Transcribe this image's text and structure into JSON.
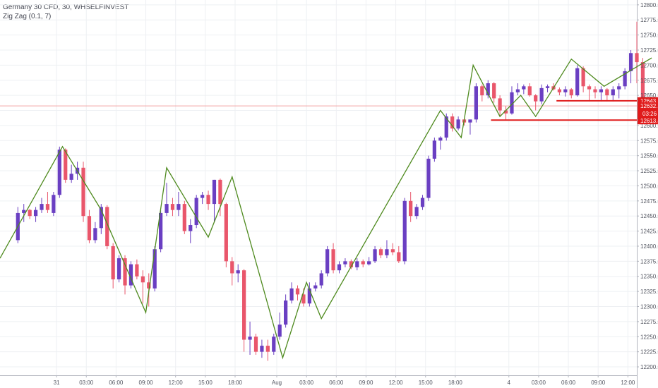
{
  "legend": {
    "symbol_line": "Germany 30 CFD, 30, WHSELFINVEST",
    "indicator_line": "Zig Zag (0.1, 7)"
  },
  "colors": {
    "up_candle": "#6a3fc2",
    "down_candle": "#e9566b",
    "zigzag": "#4e8a1e",
    "level_line": "#e01b1b",
    "price_line": "#f2a3a3",
    "grid": "#eef0f3",
    "axis_text": "#50535e"
  },
  "chart_data": {
    "type": "candlestick",
    "interval": "30",
    "y_axis": {
      "position": "right",
      "range": [
        12186,
        12808
      ],
      "ticks": [
        12200,
        12225,
        12250,
        12275,
        12300,
        12325,
        12350,
        12375,
        12400,
        12425,
        12450,
        12475,
        12500,
        12525,
        12550,
        12575,
        12600,
        12625,
        12650,
        12675,
        12700,
        12725,
        12750,
        12775,
        12800
      ],
      "tick_labels": [
        "12200.0",
        "12225.0",
        "12250.0",
        "12275.0",
        "12300.0",
        "12325.0",
        "12350.0",
        "12375.0",
        "12400.0",
        "12425.0",
        "12450.0",
        "12475.0",
        "12500.0",
        "12525.0",
        "12550.0",
        "12575.0",
        "12600.0",
        "12625.0",
        "12650.0",
        "12675.0",
        "12700.0",
        "12725.0",
        "12750.0",
        "12775.0",
        "12800.0"
      ]
    },
    "x_axis": {
      "range": [
        -3,
        104
      ],
      "ticks": [
        {
          "label": "31",
          "index": 6.5
        },
        {
          "label": "03:00",
          "index": 11.5
        },
        {
          "label": "06:00",
          "index": 16.5
        },
        {
          "label": "09:00",
          "index": 21.5
        },
        {
          "label": "12:00",
          "index": 26.5
        },
        {
          "label": "15:00",
          "index": 31.5
        },
        {
          "label": "18:00",
          "index": 36.5
        },
        {
          "label": "Aug",
          "index": 43.5
        },
        {
          "label": "03:00",
          "index": 48.5
        },
        {
          "label": "06:00",
          "index": 53.5
        },
        {
          "label": "09:00",
          "index": 58.5
        },
        {
          "label": "12:00",
          "index": 63.5
        },
        {
          "label": "15:00",
          "index": 68.5
        },
        {
          "label": "18:00",
          "index": 73.5
        },
        {
          "label": "4",
          "index": 82.5
        },
        {
          "label": "03:00",
          "index": 87.5
        },
        {
          "label": "06:00",
          "index": 92.5
        },
        {
          "label": "09:00",
          "index": 97.5
        },
        {
          "label": "12:00",
          "index": 102.5
        }
      ]
    },
    "grid": true,
    "candles": [
      [
        12410,
        12465,
        12405,
        12455
      ],
      [
        12455,
        12470,
        12440,
        12460
      ],
      [
        12460,
        12462,
        12445,
        12450
      ],
      [
        12450,
        12465,
        12440,
        12460
      ],
      [
        12460,
        12480,
        12455,
        12470
      ],
      [
        12470,
        12490,
        12455,
        12460
      ],
      [
        12455,
        12490,
        12450,
        12485
      ],
      [
        12485,
        12565,
        12480,
        12560
      ],
      [
        12560,
        12562,
        12505,
        12510
      ],
      [
        12510,
        12535,
        12505,
        12520
      ],
      [
        12520,
        12540,
        12510,
        12530
      ],
      [
        12530,
        12540,
        12440,
        12450
      ],
      [
        12450,
        12460,
        12405,
        12410
      ],
      [
        12410,
        12440,
        12405,
        12430
      ],
      [
        12430,
        12470,
        12420,
        12465
      ],
      [
        12465,
        12468,
        12395,
        12400
      ],
      [
        12400,
        12405,
        12330,
        12345
      ],
      [
        12345,
        12385,
        12340,
        12380
      ],
      [
        12380,
        12385,
        12320,
        12335
      ],
      [
        12335,
        12375,
        12330,
        12370
      ],
      [
        12370,
        12378,
        12345,
        12350
      ],
      [
        12350,
        12360,
        12305,
        12340
      ],
      [
        12340,
        12355,
        12300,
        12330
      ],
      [
        12330,
        12400,
        12325,
        12395
      ],
      [
        12395,
        12460,
        12390,
        12455
      ],
      [
        12455,
        12505,
        12450,
        12470
      ],
      [
        12470,
        12480,
        12450,
        12460
      ],
      [
        12460,
        12490,
        12450,
        12470
      ],
      [
        12470,
        12475,
        12420,
        12425
      ],
      [
        12425,
        12445,
        12405,
        12435
      ],
      [
        12435,
        12485,
        12430,
        12480
      ],
      [
        12480,
        12490,
        12470,
        12485
      ],
      [
        12485,
        12492,
        12460,
        12470
      ],
      [
        12470,
        12510,
        12440,
        12510
      ],
      [
        12510,
        12512,
        12450,
        12470
      ],
      [
        12470,
        12472,
        12365,
        12375
      ],
      [
        12375,
        12382,
        12335,
        12355
      ],
      [
        12355,
        12370,
        12340,
        12360
      ],
      [
        12360,
        12362,
        12225,
        12245
      ],
      [
        12245,
        12275,
        12220,
        12250
      ],
      [
        12250,
        12255,
        12220,
        12225
      ],
      [
        12225,
        12245,
        12215,
        12235
      ],
      [
        12235,
        12245,
        12210,
        12225
      ],
      [
        12225,
        12255,
        12220,
        12250
      ],
      [
        12250,
        12290,
        12245,
        12270
      ],
      [
        12270,
        12320,
        12265,
        12310
      ],
      [
        12310,
        12340,
        12305,
        12330
      ],
      [
        12330,
        12335,
        12310,
        12320
      ],
      [
        12320,
        12330,
        12300,
        12305
      ],
      [
        12305,
        12340,
        12300,
        12330
      ],
      [
        12330,
        12340,
        12325,
        12335
      ],
      [
        12335,
        12360,
        12330,
        12355
      ],
      [
        12355,
        12400,
        12350,
        12395
      ],
      [
        12395,
        12405,
        12355,
        12360
      ],
      [
        12360,
        12375,
        12355,
        12370
      ],
      [
        12370,
        12380,
        12365,
        12375
      ],
      [
        12375,
        12378,
        12362,
        12365
      ],
      [
        12365,
        12380,
        12360,
        12375
      ],
      [
        12375,
        12378,
        12365,
        12370
      ],
      [
        12370,
        12382,
        12368,
        12375
      ],
      [
        12375,
        12400,
        12372,
        12395
      ],
      [
        12395,
        12398,
        12380,
        12385
      ],
      [
        12385,
        12410,
        12380,
        12395
      ],
      [
        12395,
        12405,
        12385,
        12390
      ],
      [
        12390,
        12400,
        12372,
        12375
      ],
      [
        12375,
        12480,
        12370,
        12475
      ],
      [
        12475,
        12490,
        12440,
        12450
      ],
      [
        12450,
        12470,
        12445,
        12465
      ],
      [
        12465,
        12485,
        12460,
        12480
      ],
      [
        12480,
        12550,
        12475,
        12545
      ],
      [
        12545,
        12580,
        12540,
        12575
      ],
      [
        12575,
        12582,
        12560,
        12580
      ],
      [
        12580,
        12620,
        12575,
        12615
      ],
      [
        12615,
        12620,
        12590,
        12595
      ],
      [
        12595,
        12615,
        12592,
        12610
      ],
      [
        12610,
        12612,
        12600,
        12605
      ],
      [
        12605,
        12608,
        12585,
        12610
      ],
      [
        12610,
        12670,
        12605,
        12665
      ],
      [
        12665,
        12668,
        12640,
        12650
      ],
      [
        12650,
        12675,
        12645,
        12670
      ],
      [
        12670,
        12672,
        12638,
        12645
      ],
      [
        12645,
        12650,
        12615,
        12625
      ],
      [
        12625,
        12632,
        12610,
        12620
      ],
      [
        12620,
        12665,
        12618,
        12655
      ],
      [
        12655,
        12670,
        12650,
        12660
      ],
      [
        12660,
        12668,
        12652,
        12665
      ],
      [
        12665,
        12670,
        12648,
        12650
      ],
      [
        12650,
        12652,
        12625,
        12640
      ],
      [
        12640,
        12668,
        12635,
        12662
      ],
      [
        12662,
        12668,
        12655,
        12665
      ],
      [
        12665,
        12670,
        12658,
        12660
      ],
      [
        12660,
        12663,
        12650,
        12655
      ],
      [
        12655,
        12665,
        12648,
        12660
      ],
      [
        12660,
        12662,
        12645,
        12650
      ],
      [
        12650,
        12700,
        12648,
        12695
      ],
      [
        12695,
        12698,
        12655,
        12665
      ],
      [
        12665,
        12668,
        12640,
        12660
      ],
      [
        12660,
        12665,
        12645,
        12655
      ],
      [
        12655,
        12665,
        12640,
        12660
      ],
      [
        12660,
        12662,
        12640,
        12650
      ],
      [
        12650,
        12665,
        12640,
        12660
      ],
      [
        12660,
        12670,
        12645,
        12665
      ],
      [
        12665,
        12695,
        12660,
        12690
      ],
      [
        12690,
        12725,
        12670,
        12720
      ],
      [
        12720,
        12772,
        12670,
        12705
      ],
      [
        12705,
        12712,
        12620,
        12628
      ]
    ],
    "zigzag": [
      [
        -3,
        12380
      ],
      [
        7.5,
        12565
      ],
      [
        14,
        12460
      ],
      [
        21.5,
        12290
      ],
      [
        25,
        12530
      ],
      [
        32,
        12415
      ],
      [
        36,
        12515
      ],
      [
        44.5,
        12215
      ],
      [
        48.5,
        12340
      ],
      [
        51,
        12280
      ],
      [
        71,
        12625
      ],
      [
        74.5,
        12580
      ],
      [
        76.5,
        12700
      ],
      [
        81,
        12615
      ],
      [
        84.5,
        12650
      ],
      [
        87,
        12615
      ],
      [
        93,
        12710
      ],
      [
        98.5,
        12665
      ],
      [
        106.5,
        12712
      ]
    ],
    "horizontal_lines": [
      {
        "value": 12641,
        "from_index": 90.5,
        "label": "12643.1"
      },
      {
        "value": 12609,
        "from_index": 79.5,
        "label": "12613.4"
      }
    ],
    "last_price": {
      "value": 12632.5,
      "label": "12632.5",
      "countdown": "03:26"
    }
  }
}
